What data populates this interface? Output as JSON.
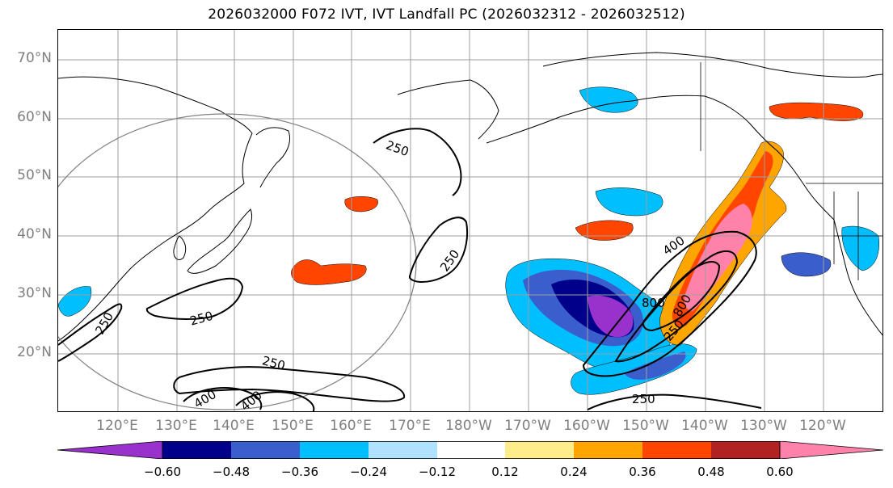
{
  "title": "2026032000 F072 IVT, IVT Landfall PC (2026032312 - 2026032512)",
  "lat_labels": [
    "70°N",
    "60°N",
    "50°N",
    "40°N",
    "30°N",
    "20°N"
  ],
  "lon_labels": [
    "120°E",
    "130°E",
    "140°E",
    "150°E",
    "160°E",
    "170°E",
    "180°W",
    "170°W",
    "160°W",
    "150°W",
    "140°W",
    "130°W",
    "120°W"
  ],
  "contour_labels": [
    "250",
    "250",
    "250",
    "250",
    "250",
    "250",
    "400",
    "400",
    "400",
    "800",
    "800",
    "250",
    "250"
  ],
  "colorbar": {
    "ticks": [
      "−0.60",
      "−0.48",
      "−0.36",
      "−0.24",
      "−0.12",
      "0.12",
      "0.24",
      "0.36",
      "0.48",
      "0.60"
    ],
    "colors": [
      "#9932cc",
      "#00008b",
      "#3a5fcd",
      "#00bfff",
      "#b0e2ff",
      "#ffffff",
      "#ffec8b",
      "#ffa500",
      "#ff4500",
      "#b22222",
      "#ff82ab"
    ]
  }
}
